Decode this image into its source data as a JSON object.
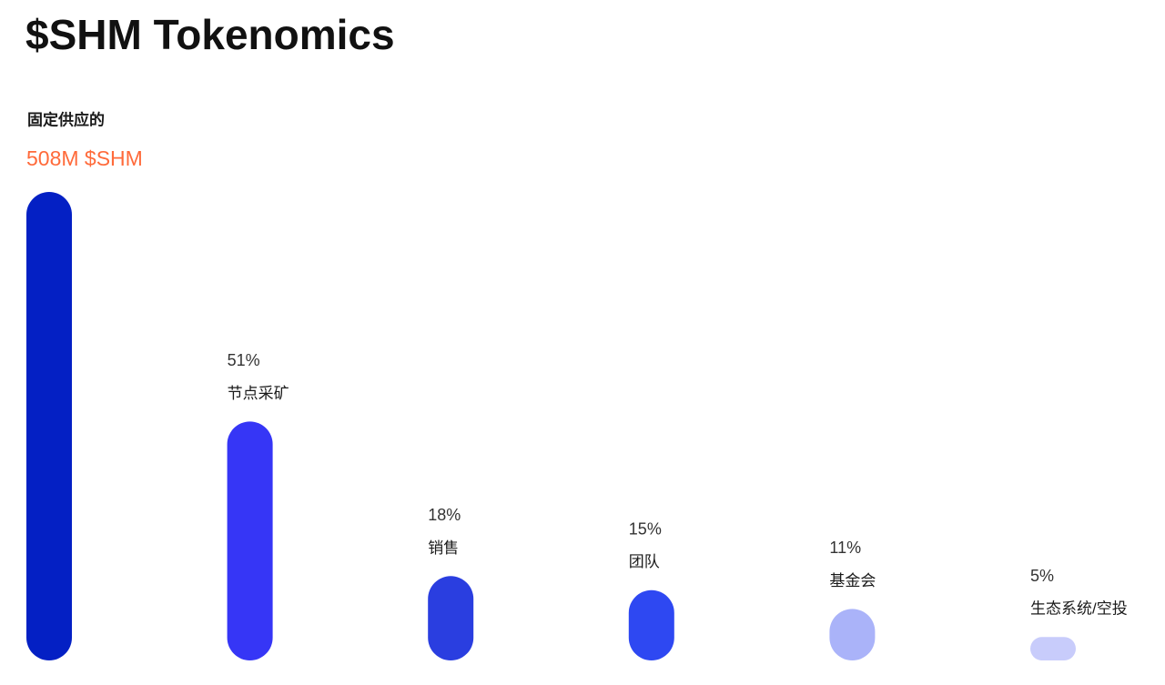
{
  "chart_data": {
    "type": "bar",
    "title": "$SHM Tokenomics",
    "subtitle": "固定供应的",
    "annotation": "508M $SHM",
    "categories": [
      null,
      "节点采矿",
      "销售",
      "团队",
      "基金会",
      "生态系统/空投"
    ],
    "values": [
      100,
      51,
      18,
      15,
      11,
      5
    ],
    "value_labels": [
      null,
      "51%",
      "18%",
      "15%",
      "11%",
      "5%"
    ],
    "colors": [
      "#0420c4",
      "#3636f6",
      "#2a3ee0",
      "#2e48f2",
      "#aab3f9",
      "#c8ccfb"
    ],
    "ylim": [
      0,
      100
    ]
  }
}
